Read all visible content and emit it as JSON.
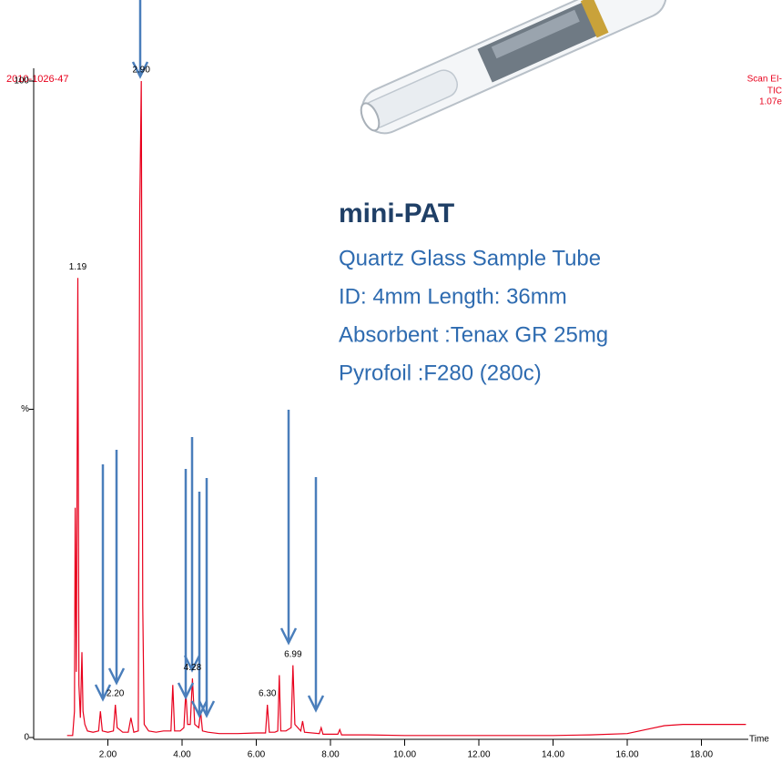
{
  "chart_data": {
    "type": "line",
    "header_left": "2010-1026-47",
    "header_right": [
      "Scan EI-",
      "TIC",
      "1.07e"
    ],
    "x_label": "Time",
    "series": [
      {
        "name": "TIC",
        "color": "#e8001c",
        "x": [
          0.9,
          1.05,
          1.1,
          1.12,
          1.15,
          1.19,
          1.22,
          1.26,
          1.3,
          1.33,
          1.38,
          1.45,
          1.6,
          1.75,
          1.8,
          1.85,
          2.0,
          2.15,
          2.2,
          2.25,
          2.4,
          2.55,
          2.62,
          2.7,
          2.82,
          2.86,
          2.9,
          2.94,
          2.98,
          3.1,
          3.3,
          3.5,
          3.7,
          3.75,
          3.8,
          3.95,
          4.05,
          4.1,
          4.15,
          4.22,
          4.28,
          4.34,
          4.45,
          4.5,
          4.55,
          4.7,
          5.0,
          5.5,
          6.0,
          6.25,
          6.3,
          6.35,
          6.5,
          6.58,
          6.62,
          6.66,
          6.8,
          6.94,
          6.99,
          7.04,
          7.2,
          7.25,
          7.3,
          7.7,
          7.75,
          7.8,
          8.2,
          8.25,
          8.3,
          9,
          10,
          11,
          12,
          13,
          14,
          15,
          16,
          16.5,
          17,
          17.5,
          18,
          18.5,
          19.2
        ],
        "values": [
          0.3,
          0.3,
          4,
          35,
          10,
          70,
          8,
          3,
          13,
          4,
          2,
          1,
          0.8,
          1,
          4,
          1,
          0.8,
          1,
          5,
          1.5,
          0.8,
          0.8,
          3,
          0.8,
          1,
          80,
          100,
          20,
          2,
          1,
          0.8,
          1,
          1,
          8,
          1,
          1,
          1.5,
          7,
          2,
          2,
          9,
          2,
          1.5,
          4,
          1,
          0.8,
          0.6,
          0.6,
          0.7,
          0.7,
          5,
          0.8,
          0.8,
          1,
          9.5,
          1,
          1,
          1.5,
          11,
          2,
          1,
          2.5,
          0.8,
          0.6,
          1.5,
          0.5,
          0.5,
          1.2,
          0.4,
          0.4,
          0.3,
          0.3,
          0.3,
          0.3,
          0.3,
          0.4,
          0.6,
          1.2,
          1.8,
          2,
          2,
          2,
          2
        ]
      }
    ],
    "peak_labels": [
      1.19,
      {
        "value": 2.9,
        "label": "2.90"
      },
      {
        "value": 2.2,
        "label": "2.20"
      },
      4.28,
      {
        "value": 6.3,
        "label": "6.30"
      },
      6.99
    ],
    "xlim": [
      0,
      19.2
    ],
    "ylim": [
      0,
      100
    ],
    "xticks": [
      {
        "value": 2,
        "label": "2.00"
      },
      {
        "value": 4,
        "label": "4.00"
      },
      {
        "value": 6,
        "label": "6.00"
      },
      {
        "value": 8,
        "label": "8.00"
      },
      {
        "value": 10,
        "label": "10.00"
      },
      {
        "value": 12,
        "label": "12.00"
      },
      {
        "value": 14,
        "label": "14.00"
      },
      {
        "value": 16,
        "label": "16.00"
      },
      {
        "value": 18,
        "label": "18.00"
      }
    ],
    "yticks": [
      0,
      {
        "value": 50,
        "label": "%"
      },
      100
    ]
  },
  "panel": {
    "title": "mini-PAT",
    "lines": [
      "Quartz Glass Sample Tube",
      "ID: 4mm Length: 36mm",
      "Absorbent :Tenax GR 25mg",
      "Pyrofoil :F280 (280c)"
    ]
  }
}
